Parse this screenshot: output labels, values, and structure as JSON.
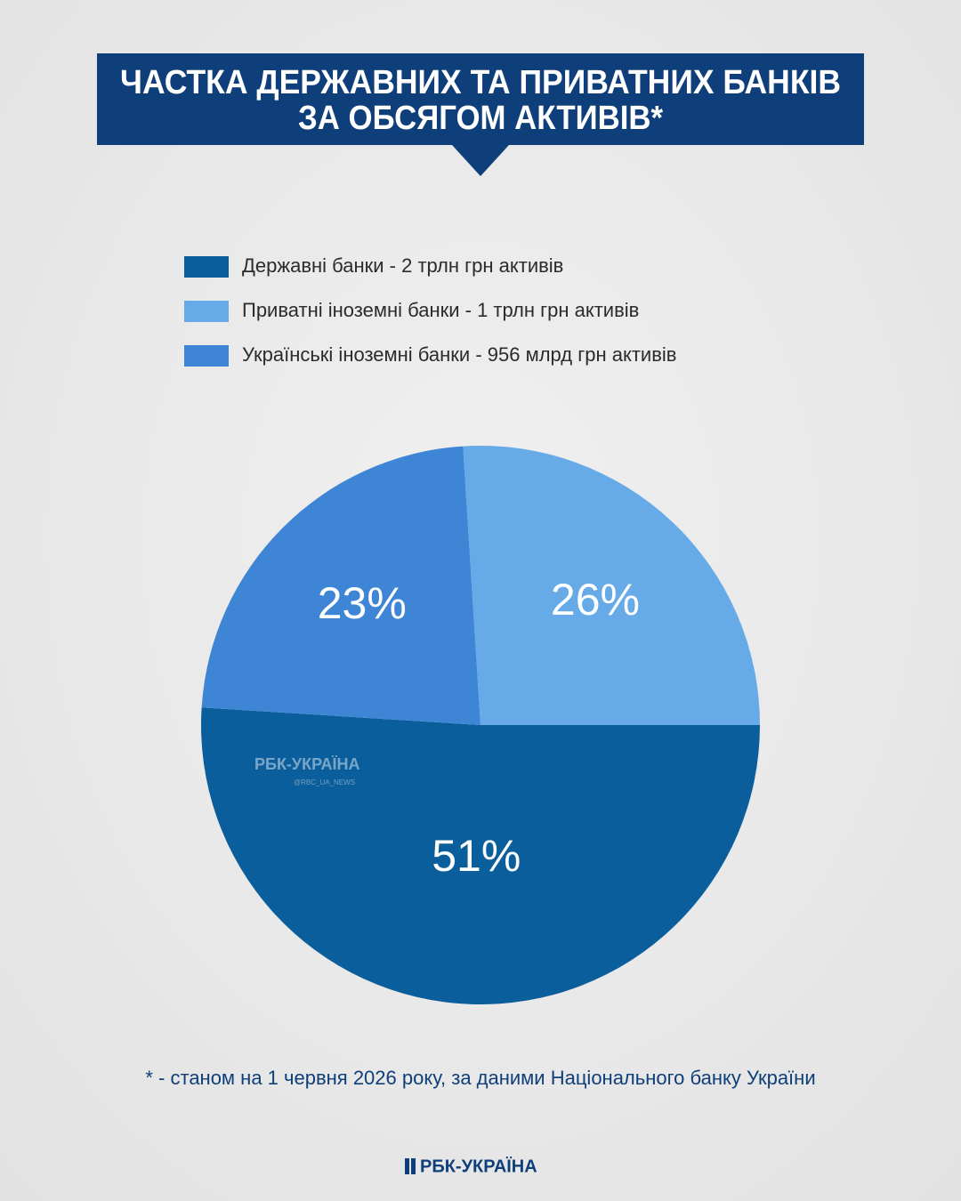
{
  "chart_data": {
    "type": "pie",
    "title": [
      "ЧАСТКА ДЕРЖАВНИХ ТА ПРИВАТНИХ БАНКІВ",
      "ЗА ОБСЯГОМ АКТИВІВ*"
    ],
    "categories": [
      "Державні банки - 2 трлн грн активів",
      "Приватні іноземні банки - 1 трлн грн активів",
      "Українські іноземні банки - 956 млрд грн активів"
    ],
    "values": [
      51,
      26,
      23
    ],
    "value_labels": [
      "51%",
      "26%",
      "23%"
    ],
    "colors": [
      "#0b5e9c",
      "#66aae8",
      "#3e85d6"
    ],
    "footnote": "* - станом на 1 червня 2026 року, за даними Національного банку України",
    "watermark": "РБК-УКРАЇНА",
    "watermark_handle": "@RBC_UA_NEWS",
    "brand": "РБК-УКРАЇНА"
  }
}
